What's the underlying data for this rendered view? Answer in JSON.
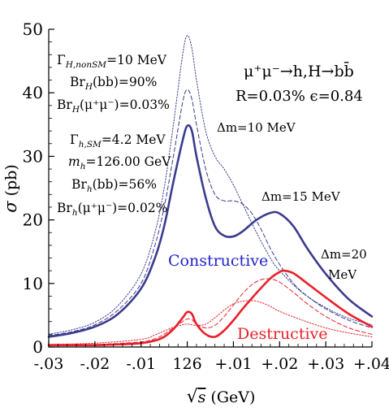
{
  "chart_data": {
    "type": "line",
    "xlabel_parts": {
      "root": "√",
      "var": "s",
      "unit": " (GeV)"
    },
    "ylabel_parts": {
      "sym": "σ",
      "unit": " (pb)"
    },
    "xlim": [
      -0.03,
      0.04
    ],
    "ylim": [
      0,
      50
    ],
    "x_ticks": [
      {
        "value": -0.03,
        "label": "-.03"
      },
      {
        "value": -0.02,
        "label": "-.02"
      },
      {
        "value": -0.01,
        "label": "-.01"
      },
      {
        "value": 0.0,
        "label": "126"
      },
      {
        "value": 0.01,
        "label": "+.01"
      },
      {
        "value": 0.02,
        "label": "+.02"
      },
      {
        "value": 0.03,
        "label": "+.03"
      },
      {
        "value": 0.04,
        "label": "+.04"
      }
    ],
    "y_ticks": [
      0,
      10,
      20,
      30,
      40,
      50
    ],
    "colors": {
      "blue": "#3a3c8e",
      "red": "#e8202a",
      "axis": "#000000"
    },
    "series": [
      {
        "group": "constructive",
        "style": "solid",
        "color": "#3a3c8e",
        "x": [
          -0.03,
          -0.025,
          -0.02,
          -0.015,
          -0.01,
          -0.007,
          -0.005,
          -0.003,
          -0.001,
          0.0,
          0.001,
          0.002,
          0.004,
          0.006,
          0.008,
          0.01,
          0.012,
          0.015,
          0.018,
          0.02,
          0.023,
          0.026,
          0.03,
          0.035,
          0.04
        ],
        "y": [
          1.6,
          2.2,
          3.2,
          5.2,
          9.2,
          14,
          19,
          26,
          32.5,
          34.8,
          34,
          30,
          23.5,
          19,
          17.5,
          17.4,
          18.2,
          20,
          21.1,
          21,
          19,
          15.5,
          11.5,
          7.5,
          4.8
        ]
      },
      {
        "group": "constructive",
        "style": "dashed",
        "color": "#3a3c8e",
        "x": [
          -0.03,
          -0.025,
          -0.02,
          -0.015,
          -0.01,
          -0.007,
          -0.005,
          -0.003,
          -0.001,
          0.0,
          0.001,
          0.002,
          0.004,
          0.006,
          0.008,
          0.01,
          0.012,
          0.014,
          0.016,
          0.018,
          0.02,
          0.023,
          0.026,
          0.03,
          0.035,
          0.04
        ],
        "y": [
          1.8,
          2.4,
          3.5,
          5.8,
          10,
          16,
          22,
          30,
          38.5,
          40.5,
          39,
          35,
          28,
          24,
          23,
          23,
          22.5,
          21,
          18.5,
          15.5,
          13,
          10,
          8,
          6,
          4.2,
          3
        ]
      },
      {
        "group": "constructive",
        "style": "dotted",
        "color": "#3a3c8e",
        "x": [
          -0.03,
          -0.025,
          -0.02,
          -0.015,
          -0.01,
          -0.007,
          -0.005,
          -0.003,
          -0.001,
          0.0,
          0.001,
          0.002,
          0.004,
          0.006,
          0.008,
          0.01,
          0.012,
          0.015,
          0.018,
          0.02,
          0.025,
          0.03,
          0.035,
          0.04
        ],
        "y": [
          2,
          2.7,
          3.9,
          6.5,
          11.5,
          18,
          25,
          35,
          46,
          49,
          47,
          42,
          34,
          30,
          28,
          25.5,
          22.5,
          18,
          14,
          12,
          8.5,
          6.2,
          4.5,
          3.5
        ]
      },
      {
        "group": "destructive",
        "style": "solid",
        "color": "#e8202a",
        "x": [
          -0.03,
          -0.02,
          -0.015,
          -0.01,
          -0.007,
          -0.005,
          -0.003,
          -0.001,
          0.0,
          0.001,
          0.002,
          0.004,
          0.006,
          0.008,
          0.01,
          0.012,
          0.015,
          0.018,
          0.02,
          0.021,
          0.023,
          0.026,
          0.03,
          0.035,
          0.04
        ],
        "y": [
          0.3,
          0.3,
          0.4,
          0.6,
          1,
          1.6,
          2.8,
          4.6,
          5.5,
          5.2,
          3.6,
          2,
          1.6,
          2.6,
          4.2,
          6,
          8.5,
          10.8,
          11.8,
          12,
          11.6,
          10,
          7.8,
          5.2,
          3.2
        ]
      },
      {
        "group": "destructive",
        "style": "dashed",
        "color": "#e8202a",
        "x": [
          -0.03,
          -0.02,
          -0.01,
          -0.007,
          -0.005,
          -0.003,
          -0.001,
          0.0,
          0.001,
          0.002,
          0.004,
          0.006,
          0.008,
          0.01,
          0.012,
          0.014,
          0.016,
          0.018,
          0.02,
          0.023,
          0.026,
          0.03,
          0.035,
          0.04
        ],
        "y": [
          0.3,
          0.4,
          0.8,
          1.3,
          2,
          3,
          4,
          4.4,
          4.3,
          3.6,
          3,
          3.4,
          4.8,
          6.6,
          8.4,
          9.8,
          10.6,
          10.7,
          10.2,
          8.6,
          6.8,
          4.8,
          3,
          2
        ]
      },
      {
        "group": "destructive",
        "style": "dotted",
        "color": "#e8202a",
        "x": [
          -0.03,
          -0.02,
          -0.01,
          -0.007,
          -0.005,
          -0.003,
          -0.001,
          0.0,
          0.001,
          0.002,
          0.004,
          0.006,
          0.008,
          0.01,
          0.012,
          0.014,
          0.016,
          0.018,
          0.02,
          0.025,
          0.03,
          0.035,
          0.04
        ],
        "y": [
          0.4,
          0.6,
          1.2,
          1.9,
          2.5,
          3.1,
          3.5,
          3.6,
          3.5,
          3.4,
          3.6,
          4.6,
          5.8,
          6.8,
          7.2,
          7.3,
          7,
          6.4,
          5.6,
          4.2,
          3,
          2.2,
          1.6
        ]
      }
    ],
    "annotations_left": [
      {
        "pre": "Γ",
        "sub": "H,nonSM",
        "post": "=10 MeV"
      },
      {
        "pre": "Br",
        "sub": "H",
        "post": "(bb)=90%"
      },
      {
        "pre": "Br",
        "sub": "H",
        "post": "(μ⁺μ⁻)=0.03%"
      },
      {
        "pre": "Γ",
        "sub": "h,SM",
        "post": "=4.2 MeV"
      },
      {
        "pre": "m",
        "sub": "h",
        "post": "=126.00 GeV"
      },
      {
        "pre": "Br",
        "sub": "h",
        "post": "(bb)=56%"
      },
      {
        "pre": "Br",
        "sub": "h",
        "post": "(μ⁺μ⁻)=0.02%"
      }
    ],
    "process_label": "μ⁺μ⁻→h,H→bb̄",
    "params_label": "R=0.03% ϵ=0.84",
    "dm_labels": [
      "Δm=10 MeV",
      "Δm=15 MeV",
      "Δm=20",
      "MeV"
    ],
    "group_labels": {
      "constructive": "Constructive",
      "destructive": "Destructive"
    }
  }
}
